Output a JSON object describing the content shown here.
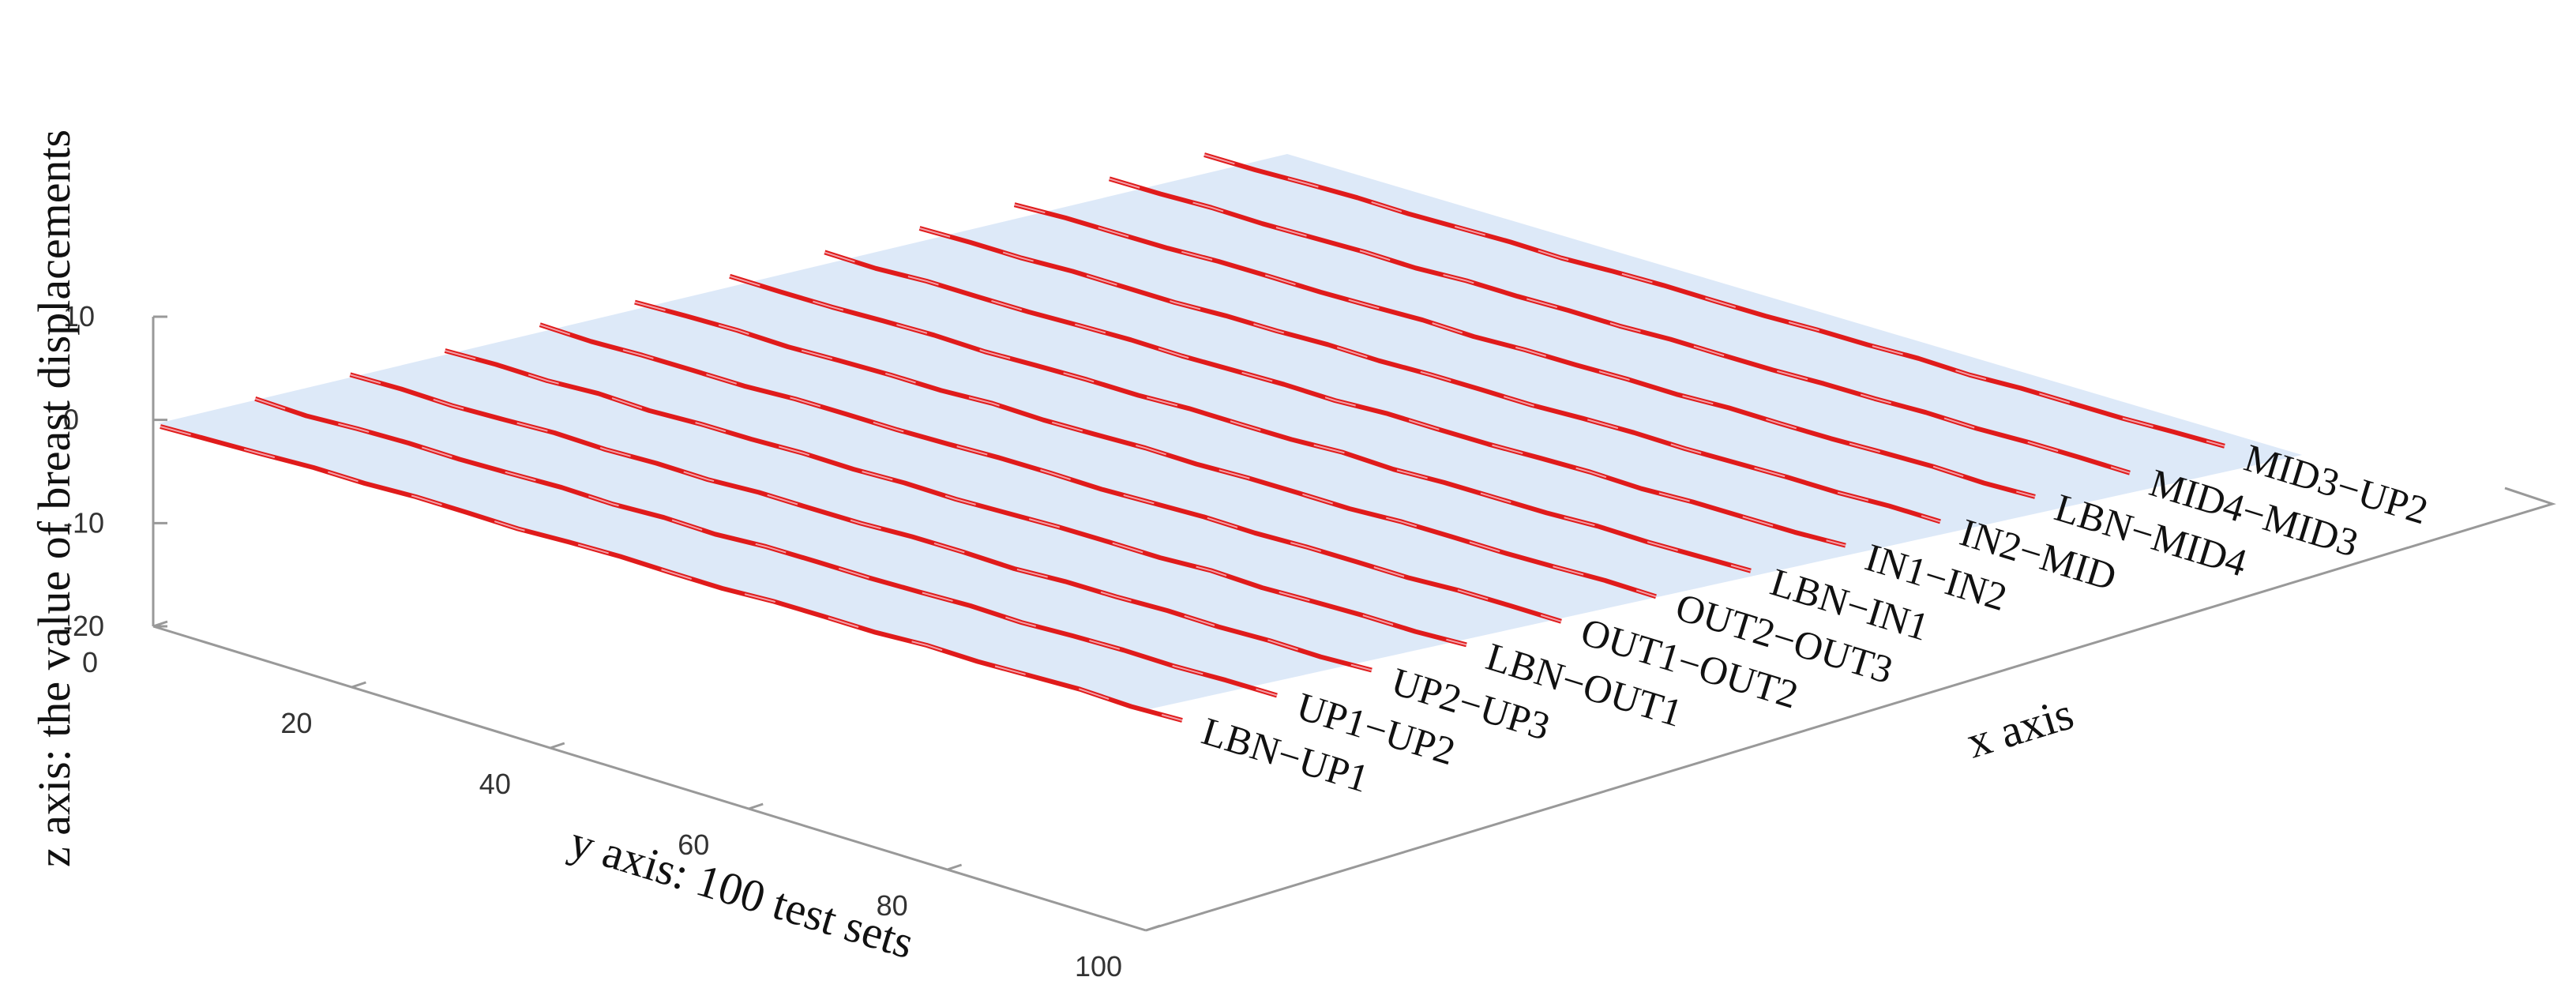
{
  "chart_data": {
    "type": "line",
    "projection": "3d",
    "xlabel": "x axis",
    "ylabel": "y axis: 100 test sets",
    "zlabel": "z axis: the value of breast displacements",
    "ylim": [
      0,
      100
    ],
    "zlim": [
      -20,
      10
    ],
    "yticks": [
      "0",
      "20",
      "40",
      "60",
      "80",
      "100"
    ],
    "zticks": [
      "10",
      "0",
      "-10",
      "-20"
    ],
    "series_color": "#e01b1b",
    "plane_color": "#dde9f8",
    "series": [
      {
        "name": "LBN−UP1",
        "values": [
          -0.5,
          -0.3,
          -0.1,
          0.2,
          0.0,
          0.3,
          0.1,
          -0.2,
          0.1,
          0.2,
          -0.1,
          -0.3,
          0.1,
          0.0,
          -0.2,
          0.2,
          -0.1,
          0.1,
          0.3,
          -0.2,
          0.0
        ]
      },
      {
        "name": "UP1−UP2",
        "values": [
          0.2,
          -0.3,
          0.1,
          0.2,
          -0.1,
          0.0,
          0.2,
          -0.2,
          0.1,
          -0.3,
          0.2,
          0.1,
          -0.1,
          0.0,
          0.2,
          -0.2,
          0.1,
          0.2,
          -0.1,
          0.1,
          0.0
        ]
      },
      {
        "name": "UP2−UP3",
        "values": [
          0.1,
          0.2,
          -0.2,
          0.0,
          0.3,
          -0.1,
          0.1,
          -0.2,
          0.2,
          0.0,
          -0.1,
          0.2,
          0.1,
          -0.3,
          0.1,
          0.0,
          0.2,
          -0.1,
          0.1,
          -0.2,
          0.1
        ]
      },
      {
        "name": "LBN−OUT1",
        "values": [
          0.0,
          0.2,
          -0.1,
          0.3,
          -0.2,
          0.1,
          0.0,
          0.2,
          -0.1,
          0.1,
          -0.2,
          0.0,
          0.2,
          0.1,
          -0.1,
          0.3,
          -0.2,
          0.0,
          0.1,
          -0.1,
          0.2
        ]
      },
      {
        "name": "OUT1−OUT2",
        "values": [
          0.3,
          -0.1,
          0.1,
          0.0,
          -0.2,
          0.2,
          0.1,
          -0.1,
          0.0,
          0.2,
          0.1,
          -0.2,
          0.0,
          0.2,
          -0.1,
          0.1,
          0.0,
          -0.2,
          0.2,
          0.1,
          -0.1
        ]
      },
      {
        "name": "OUT2−OUT3",
        "values": [
          -0.1,
          0.1,
          0.2,
          -0.2,
          0.0,
          0.1,
          -0.1,
          0.3,
          -0.1,
          0.0,
          0.2,
          -0.1,
          0.1,
          0.0,
          -0.2,
          0.2,
          0.1,
          -0.1,
          0.0,
          0.2,
          -0.1
        ]
      },
      {
        "name": "LBN−IN1",
        "values": [
          0.2,
          0.0,
          -0.1,
          0.1,
          0.2,
          -0.2,
          0.0,
          0.1,
          -0.1,
          0.2,
          0.0,
          -0.1,
          0.3,
          -0.2,
          0.1,
          0.0,
          -0.1,
          0.2,
          -0.1,
          0.0,
          0.1
        ]
      },
      {
        "name": "IN1−IN2",
        "values": [
          0.1,
          -0.2,
          0.2,
          0.0,
          -0.1,
          0.1,
          0.2,
          -0.1,
          0.0,
          0.1,
          -0.2,
          0.2,
          0.0,
          -0.1,
          0.1,
          0.2,
          -0.2,
          0.1,
          0.0,
          -0.1,
          0.2
        ]
      },
      {
        "name": "IN2−MID",
        "values": [
          0.0,
          0.1,
          -0.1,
          0.2,
          0.0,
          -0.2,
          0.1,
          0.0,
          0.2,
          -0.1,
          0.1,
          0.0,
          -0.2,
          0.1,
          0.2,
          -0.1,
          0.0,
          0.1,
          -0.1,
          0.2,
          0.0
        ]
      },
      {
        "name": "LBN−MID4",
        "values": [
          -0.2,
          0.1,
          0.0,
          -0.1,
          0.2,
          0.1,
          -0.1,
          0.0,
          0.2,
          -0.2,
          0.1,
          0.0,
          0.1,
          -0.1,
          0.2,
          0.0,
          -0.1,
          0.1,
          0.2,
          -0.2,
          0.0
        ]
      },
      {
        "name": "MID4−MID3",
        "values": [
          0.1,
          0.0,
          0.2,
          -0.1,
          0.0,
          0.1,
          -0.2,
          0.2,
          0.0,
          0.1,
          -0.1,
          0.2,
          0.0,
          -0.1,
          0.1,
          0.0,
          0.2,
          -0.1,
          0.1,
          0.0,
          -0.2
        ]
      },
      {
        "name": "MID3−UP2",
        "values": [
          0.0,
          -0.1,
          0.1,
          0.2,
          -0.1,
          0.0,
          0.1,
          -0.2,
          0.1,
          0.2,
          0.0,
          -0.1,
          0.1,
          0.0,
          0.2,
          -0.2,
          0.1,
          0.0,
          -0.1,
          0.1,
          0.2
        ]
      }
    ]
  }
}
